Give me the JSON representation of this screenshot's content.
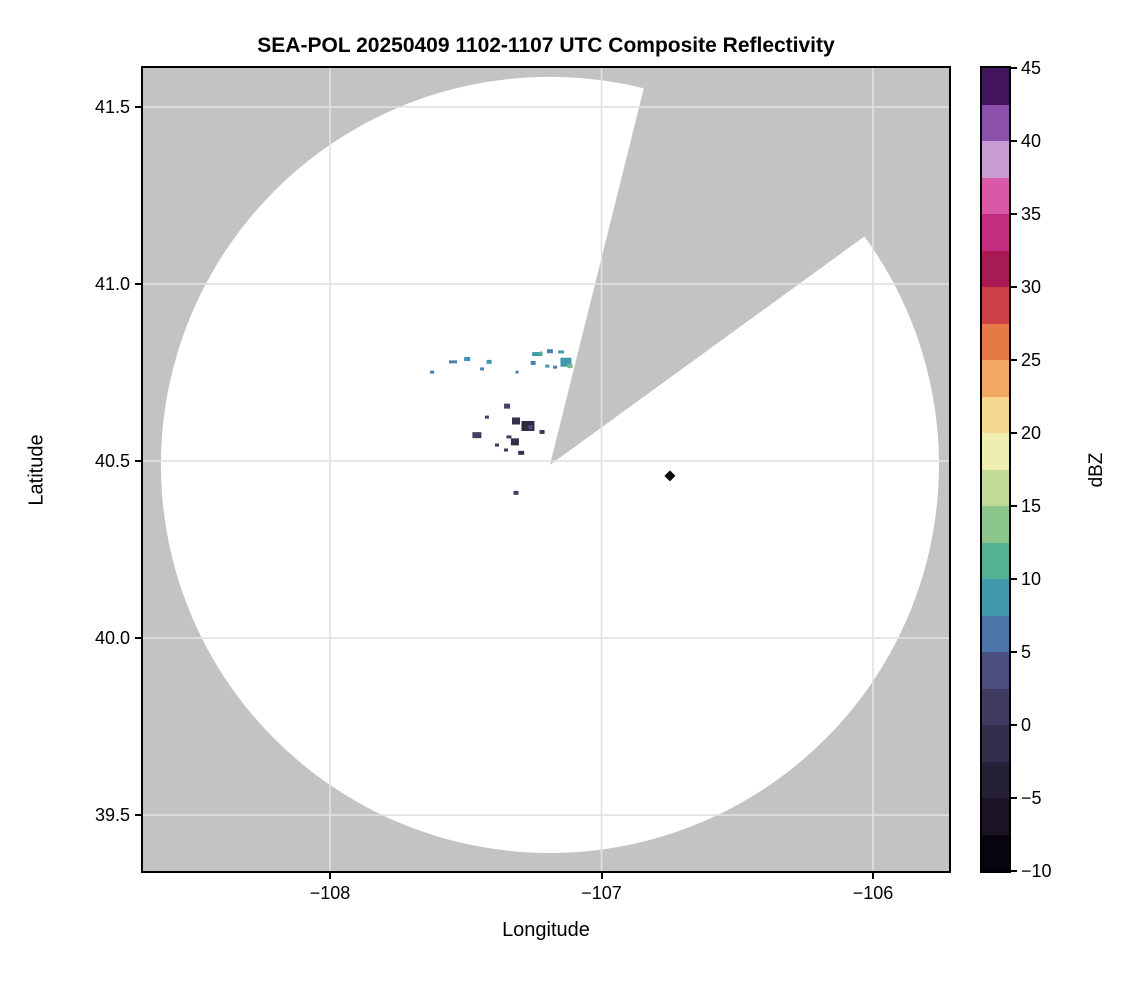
{
  "title": "SEA-POL 20250409 1102-1107 UTC Composite Reflectivity",
  "axes": {
    "xlabel": "Longitude",
    "ylabel": "Latitude",
    "xlim": [
      -108.689,
      -105.72
    ],
    "ylim": [
      39.342,
      41.61
    ],
    "grid": true,
    "xticks": [
      {
        "value": -108,
        "label": "−108"
      },
      {
        "value": -107,
        "label": "−107"
      },
      {
        "value": -106,
        "label": "−106"
      }
    ],
    "yticks": [
      {
        "value": 39.5,
        "label": "39.5"
      },
      {
        "value": 40.0,
        "label": "40.0"
      },
      {
        "value": 40.5,
        "label": "40.5"
      },
      {
        "value": 41.0,
        "label": "41.0"
      },
      {
        "value": 41.5,
        "label": "41.5"
      }
    ]
  },
  "map": {
    "background_color": "#c3c3c3",
    "coverage_color": "#ffffff",
    "gridline_color": "#e1e1e1",
    "spine_color": "#000000"
  },
  "colorbar": {
    "label": "dBZ",
    "min": -10,
    "max": 45,
    "ticks": [
      {
        "value": 45,
        "label": "45"
      },
      {
        "value": 40,
        "label": "40"
      },
      {
        "value": 35,
        "label": "35"
      },
      {
        "value": 30,
        "label": "30"
      },
      {
        "value": 25,
        "label": "25"
      },
      {
        "value": 20,
        "label": "20"
      },
      {
        "value": 15,
        "label": "15"
      },
      {
        "value": 10,
        "label": "10"
      },
      {
        "value": 5,
        "label": "5"
      },
      {
        "value": 0,
        "label": "0"
      },
      {
        "value": -5,
        "label": "−5"
      },
      {
        "value": -10,
        "label": "−10"
      }
    ],
    "band_step_dbz": 2.5,
    "band_colors_bottom_to_top": [
      "#070410",
      "#191323",
      "#262036",
      "#332c4b",
      "#3f3a5f",
      "#494e7e",
      "#4a76a9",
      "#4399ac",
      "#55b194",
      "#8cc68d",
      "#c2da98",
      "#eeeeb0",
      "#f5d88f",
      "#f2a963",
      "#e67a46",
      "#cc3f44",
      "#a81a54",
      "#c22d80",
      "#d959a8",
      "#c99bd4",
      "#8a50ac",
      "#41145c"
    ]
  },
  "chart_data": {
    "type": "heatmap",
    "title": "SEA-POL 20250409 1102-1107 UTC Composite Reflectivity",
    "xlabel": "Longitude",
    "ylabel": "Latitude",
    "units": "dBZ",
    "xlim": [
      -108.69,
      -105.72
    ],
    "ylim": [
      39.34,
      41.61
    ],
    "xticks": [
      -108,
      -107,
      -106
    ],
    "yticks": [
      39.5,
      40.0,
      40.5,
      41.0,
      41.5
    ],
    "grid": true,
    "colorbar_range": [
      -10,
      45
    ],
    "colorbar_tick_step": 5,
    "radar": {
      "center_lon": -107.19,
      "center_lat": 40.489,
      "coverage_radius_lon_deg": 1.433,
      "coverage_radius_lat_deg": 1.096,
      "blocked_sector_azimuth_deg": [
        14,
        54
      ]
    },
    "echoes": [
      {
        "lon": -107.624,
        "lat": 40.751,
        "w": 4,
        "h": 3,
        "color": "#4a7fae",
        "dbz": 6
      },
      {
        "lon": -107.547,
        "lat": 40.78,
        "w": 8,
        "h": 3,
        "color": "#4a7fae",
        "dbz": 6
      },
      {
        "lon": -107.495,
        "lat": 40.788,
        "w": 6,
        "h": 4,
        "color": "#3f8fb0",
        "dbz": 7
      },
      {
        "lon": -107.44,
        "lat": 40.76,
        "w": 4,
        "h": 3,
        "color": "#4a7fae",
        "dbz": 6
      },
      {
        "lon": -107.414,
        "lat": 40.78,
        "w": 5,
        "h": 4,
        "color": "#4399ac",
        "dbz": 8
      },
      {
        "lon": -107.311,
        "lat": 40.751,
        "w": 3,
        "h": 3,
        "color": "#4a7fae",
        "dbz": 6
      },
      {
        "lon": -107.237,
        "lat": 40.802,
        "w": 10,
        "h": 4,
        "color": "#4399ac",
        "dbz": 8
      },
      {
        "lon": -107.222,
        "lat": 40.805,
        "w": 3,
        "h": 3,
        "color": "#67b387",
        "dbz": 12
      },
      {
        "lon": -107.19,
        "lat": 40.81,
        "w": 6,
        "h": 4,
        "color": "#4a7fae",
        "dbz": 6
      },
      {
        "lon": -107.252,
        "lat": 40.777,
        "w": 5,
        "h": 4,
        "color": "#4a7fae",
        "dbz": 6
      },
      {
        "lon": -107.2,
        "lat": 40.768,
        "w": 4,
        "h": 3,
        "color": "#4399ac",
        "dbz": 8
      },
      {
        "lon": -107.149,
        "lat": 40.808,
        "w": 6,
        "h": 3,
        "color": "#41a0a8",
        "dbz": 8
      },
      {
        "lon": -107.131,
        "lat": 40.779,
        "w": 11,
        "h": 9,
        "color": "#4399ac",
        "dbz": 8
      },
      {
        "lon": -107.116,
        "lat": 40.768,
        "w": 5,
        "h": 4,
        "color": "#6fbc8a",
        "dbz": 12
      },
      {
        "lon": -107.171,
        "lat": 40.765,
        "w": 4,
        "h": 3,
        "color": "#4a7fae",
        "dbz": 6
      },
      {
        "lon": -107.348,
        "lat": 40.655,
        "w": 6,
        "h": 5,
        "color": "#4a4070",
        "dbz": 2
      },
      {
        "lon": -107.422,
        "lat": 40.624,
        "w": 4,
        "h": 3,
        "color": "#453c64",
        "dbz": 1
      },
      {
        "lon": -107.315,
        "lat": 40.613,
        "w": 8,
        "h": 7,
        "color": "#38314e",
        "dbz": -2
      },
      {
        "lon": -107.271,
        "lat": 40.599,
        "w": 13,
        "h": 10,
        "color": "#2e2840",
        "dbz": -4
      },
      {
        "lon": -107.262,
        "lat": 40.596,
        "w": 4,
        "h": 4,
        "color": "#554a80",
        "dbz": 3
      },
      {
        "lon": -107.219,
        "lat": 40.582,
        "w": 5,
        "h": 4,
        "color": "#3c3757",
        "dbz": -1
      },
      {
        "lon": -107.459,
        "lat": 40.573,
        "w": 9,
        "h": 6,
        "color": "#443e62",
        "dbz": 0
      },
      {
        "lon": -107.341,
        "lat": 40.568,
        "w": 5,
        "h": 3,
        "color": "#403a5c",
        "dbz": 0
      },
      {
        "lon": -107.385,
        "lat": 40.545,
        "w": 4,
        "h": 3,
        "color": "#3c3757",
        "dbz": -1
      },
      {
        "lon": -107.319,
        "lat": 40.554,
        "w": 8,
        "h": 7,
        "color": "#332c47",
        "dbz": -3
      },
      {
        "lon": -107.352,
        "lat": 40.531,
        "w": 4,
        "h": 3,
        "color": "#3c3757",
        "dbz": -1
      },
      {
        "lon": -107.296,
        "lat": 40.523,
        "w": 6,
        "h": 4,
        "color": "#38314e",
        "dbz": -2
      },
      {
        "lon": -107.315,
        "lat": 40.41,
        "w": 5,
        "h": 4,
        "color": "#453f68",
        "dbz": 1
      }
    ],
    "point_marker": {
      "lon": -106.748,
      "lat": 40.458,
      "shape": "diamond",
      "color": "#0b0b0f",
      "dbz": -9
    }
  }
}
